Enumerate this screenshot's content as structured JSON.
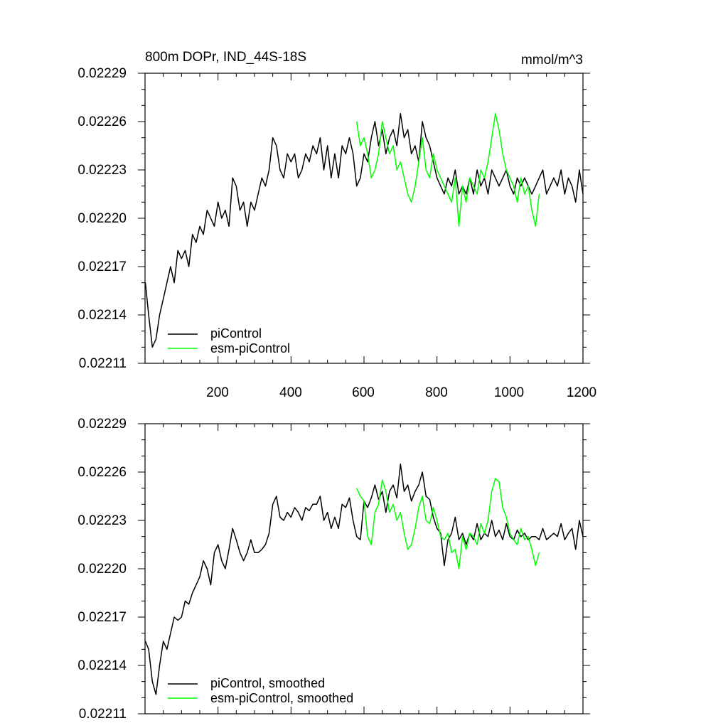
{
  "chart_data": [
    {
      "type": "line",
      "title": "800m DOPr, IND_44S-18S",
      "units": "mmol/m^3",
      "xlim": [
        0,
        1200
      ],
      "ylim": [
        0.02211,
        0.02229
      ],
      "x_ticks": [
        200,
        400,
        600,
        800,
        1000,
        1200
      ],
      "x_tick_labels": [
        "200",
        "400",
        "600",
        "800",
        "1000",
        "1200"
      ],
      "y_ticks": [
        0.02211,
        0.02214,
        0.02217,
        0.0222,
        0.02223,
        0.02226,
        0.02229
      ],
      "y_tick_labels": [
        "0.02211",
        "0.02214",
        "0.02217",
        "0.02220",
        "0.02223",
        "0.02226",
        "0.02229"
      ],
      "legend_position": "bottom-left",
      "series": [
        {
          "name": "piControl",
          "color": "#000000",
          "x": [
            1,
            10,
            20,
            30,
            40,
            50,
            60,
            70,
            80,
            90,
            100,
            110,
            120,
            130,
            140,
            150,
            160,
            170,
            180,
            190,
            200,
            210,
            220,
            230,
            240,
            250,
            260,
            270,
            280,
            290,
            300,
            310,
            320,
            330,
            340,
            350,
            360,
            370,
            380,
            390,
            400,
            410,
            420,
            430,
            440,
            450,
            460,
            470,
            480,
            490,
            500,
            510,
            520,
            530,
            540,
            550,
            560,
            570,
            580,
            590,
            600,
            610,
            620,
            630,
            640,
            650,
            660,
            670,
            680,
            690,
            700,
            710,
            720,
            730,
            740,
            750,
            760,
            770,
            780,
            790,
            800,
            810,
            820,
            830,
            840,
            850,
            860,
            870,
            880,
            890,
            900,
            910,
            920,
            930,
            940,
            950,
            960,
            970,
            980,
            990,
            1000,
            1010,
            1020,
            1030,
            1040,
            1050,
            1060,
            1070,
            1080,
            1090,
            1100,
            1110,
            1120,
            1130,
            1140,
            1150,
            1160,
            1170,
            1180,
            1190,
            1200
          ],
          "y": [
            0.02216,
            0.02214,
            0.02212,
            0.022125,
            0.02214,
            0.02215,
            0.02216,
            0.02217,
            0.02216,
            0.02218,
            0.022175,
            0.02218,
            0.02217,
            0.02219,
            0.022185,
            0.022195,
            0.02219,
            0.022205,
            0.0222,
            0.022195,
            0.02221,
            0.0222,
            0.022205,
            0.022195,
            0.022225,
            0.02222,
            0.022205,
            0.02221,
            0.022195,
            0.02221,
            0.022205,
            0.022215,
            0.022225,
            0.02222,
            0.02223,
            0.02225,
            0.022245,
            0.02223,
            0.022225,
            0.02224,
            0.022235,
            0.02224,
            0.022225,
            0.02223,
            0.02224,
            0.022235,
            0.022245,
            0.02224,
            0.02225,
            0.02223,
            0.022245,
            0.022225,
            0.02224,
            0.022225,
            0.022245,
            0.02224,
            0.02225,
            0.02224,
            0.02222,
            0.022225,
            0.02224,
            0.022235,
            0.02225,
            0.02226,
            0.022245,
            0.022255,
            0.02224,
            0.02225,
            0.022255,
            0.022245,
            0.022265,
            0.02225,
            0.022255,
            0.02224,
            0.022245,
            0.022235,
            0.02226,
            0.02225,
            0.022245,
            0.022235,
            0.022225,
            0.02222,
            0.022215,
            0.022225,
            0.02222,
            0.02223,
            0.022215,
            0.02222,
            0.022215,
            0.022225,
            0.022215,
            0.02223,
            0.02222,
            0.022225,
            0.022215,
            0.02223,
            0.022225,
            0.02222,
            0.022225,
            0.02223,
            0.02222,
            0.022215,
            0.022225,
            0.02222,
            0.022225,
            0.02222,
            0.022215,
            0.02222,
            0.022225,
            0.02223,
            0.022215,
            0.02222,
            0.022225,
            0.02222,
            0.02223,
            0.022215,
            0.022225,
            0.02222,
            0.02221,
            0.02223,
            0.022215
          ]
        },
        {
          "name": "esm-piControl",
          "color": "#00ff00",
          "x": [
            580,
            590,
            600,
            610,
            620,
            630,
            640,
            650,
            660,
            670,
            680,
            690,
            700,
            710,
            720,
            730,
            740,
            750,
            760,
            770,
            780,
            790,
            800,
            810,
            820,
            830,
            840,
            850,
            860,
            870,
            880,
            890,
            900,
            910,
            920,
            930,
            940,
            950,
            960,
            970,
            980,
            990,
            1000,
            1010,
            1020,
            1030,
            1040,
            1050,
            1060,
            1070,
            1080
          ],
          "y": [
            0.02226,
            0.022245,
            0.02225,
            0.02224,
            0.022225,
            0.02223,
            0.02224,
            0.02226,
            0.02225,
            0.02224,
            0.022245,
            0.02223,
            0.022235,
            0.022225,
            0.022215,
            0.02221,
            0.02222,
            0.022235,
            0.02225,
            0.02223,
            0.022225,
            0.02224,
            0.02223,
            0.022225,
            0.02222,
            0.022215,
            0.02221,
            0.022225,
            0.022195,
            0.02222,
            0.02221,
            0.022225,
            0.02222,
            0.022215,
            0.02223,
            0.022225,
            0.022235,
            0.02225,
            0.022265,
            0.022255,
            0.02224,
            0.02223,
            0.022225,
            0.02222,
            0.02221,
            0.022225,
            0.022215,
            0.02222,
            0.022205,
            0.022195,
            0.022215
          ]
        }
      ]
    },
    {
      "type": "line",
      "xlim": [
        0,
        1200
      ],
      "ylim": [
        0.02211,
        0.02229
      ],
      "x_ticks": [
        200,
        400,
        600,
        800,
        1000,
        1200
      ],
      "y_ticks": [
        0.02211,
        0.02214,
        0.02217,
        0.0222,
        0.02223,
        0.02226,
        0.02229
      ],
      "y_tick_labels": [
        "0.02211",
        "0.02214",
        "0.02217",
        "0.02220",
        "0.02223",
        "0.02226",
        "0.02229"
      ],
      "legend_position": "bottom-left",
      "series": [
        {
          "name": "piControl, smoothed",
          "color": "#000000",
          "x": [
            1,
            10,
            20,
            30,
            40,
            50,
            60,
            70,
            80,
            90,
            100,
            110,
            120,
            130,
            140,
            150,
            160,
            170,
            180,
            190,
            200,
            210,
            220,
            230,
            240,
            250,
            260,
            270,
            280,
            290,
            300,
            310,
            320,
            330,
            340,
            350,
            360,
            370,
            380,
            390,
            400,
            410,
            420,
            430,
            440,
            450,
            460,
            470,
            480,
            490,
            500,
            510,
            520,
            530,
            540,
            550,
            560,
            570,
            580,
            590,
            600,
            610,
            620,
            630,
            640,
            650,
            660,
            670,
            680,
            690,
            700,
            710,
            720,
            730,
            740,
            750,
            760,
            770,
            780,
            790,
            800,
            810,
            820,
            830,
            840,
            850,
            860,
            870,
            880,
            890,
            900,
            910,
            920,
            930,
            940,
            950,
            960,
            970,
            980,
            990,
            1000,
            1010,
            1020,
            1030,
            1040,
            1050,
            1060,
            1070,
            1080,
            1090,
            1100,
            1110,
            1120,
            1130,
            1140,
            1150,
            1160,
            1170,
            1180,
            1190,
            1200
          ],
          "y": [
            0.022155,
            0.02215,
            0.02213,
            0.022122,
            0.02214,
            0.022155,
            0.02215,
            0.02216,
            0.02217,
            0.022168,
            0.02217,
            0.02218,
            0.022178,
            0.022185,
            0.02219,
            0.022195,
            0.022205,
            0.0222,
            0.02219,
            0.02221,
            0.022215,
            0.022205,
            0.0222,
            0.022212,
            0.022225,
            0.022218,
            0.02221,
            0.022205,
            0.02221,
            0.022218,
            0.02221,
            0.02221,
            0.022212,
            0.022215,
            0.022222,
            0.02224,
            0.022245,
            0.022232,
            0.02223,
            0.022235,
            0.022232,
            0.022238,
            0.022235,
            0.02223,
            0.022238,
            0.022236,
            0.02224,
            0.02224,
            0.022245,
            0.02223,
            0.022235,
            0.022225,
            0.022232,
            0.022225,
            0.02224,
            0.022238,
            0.022244,
            0.02223,
            0.02222,
            0.022218,
            0.022242,
            0.022238,
            0.022244,
            0.022252,
            0.022243,
            0.022248,
            0.022235,
            0.022248,
            0.022252,
            0.022244,
            0.022265,
            0.022248,
            0.022252,
            0.022242,
            0.022248,
            0.022252,
            0.02226,
            0.022245,
            0.022243,
            0.022232,
            0.022225,
            0.022222,
            0.022202,
            0.022218,
            0.022222,
            0.022232,
            0.022218,
            0.022222,
            0.022215,
            0.022222,
            0.022218,
            0.022228,
            0.022218,
            0.022222,
            0.02222,
            0.02223,
            0.02222,
            0.022224,
            0.022218,
            0.022228,
            0.02222,
            0.022218,
            0.022224,
            0.02222,
            0.022222,
            0.022218,
            0.02222,
            0.02222,
            0.022218,
            0.022225,
            0.022218,
            0.02222,
            0.022222,
            0.02222,
            0.022228,
            0.022218,
            0.022222,
            0.022225,
            0.022212,
            0.02223,
            0.02222
          ]
        },
        {
          "name": "esm-piControl, smoothed",
          "color": "#00ff00",
          "x": [
            580,
            590,
            600,
            610,
            620,
            630,
            640,
            650,
            660,
            670,
            680,
            690,
            700,
            710,
            720,
            730,
            740,
            750,
            760,
            770,
            780,
            790,
            800,
            810,
            820,
            830,
            840,
            850,
            860,
            870,
            880,
            890,
            900,
            910,
            920,
            930,
            940,
            950,
            960,
            970,
            980,
            990,
            1000,
            1010,
            1020,
            1030,
            1040,
            1050,
            1060,
            1070,
            1080
          ],
          "y": [
            0.02225,
            0.022245,
            0.022242,
            0.02222,
            0.022215,
            0.022235,
            0.02224,
            0.022255,
            0.022248,
            0.022235,
            0.02224,
            0.02223,
            0.022235,
            0.022222,
            0.022212,
            0.022215,
            0.022225,
            0.022238,
            0.022245,
            0.02223,
            0.022228,
            0.022238,
            0.02223,
            0.02222,
            0.022218,
            0.022222,
            0.02221,
            0.022212,
            0.0222,
            0.02222,
            0.022212,
            0.022222,
            0.02222,
            0.022215,
            0.022228,
            0.022222,
            0.02223,
            0.022248,
            0.022256,
            0.022254,
            0.022238,
            0.022232,
            0.022222,
            0.022218,
            0.022215,
            0.022225,
            0.022218,
            0.02222,
            0.022212,
            0.022202,
            0.02221
          ]
        }
      ]
    }
  ]
}
